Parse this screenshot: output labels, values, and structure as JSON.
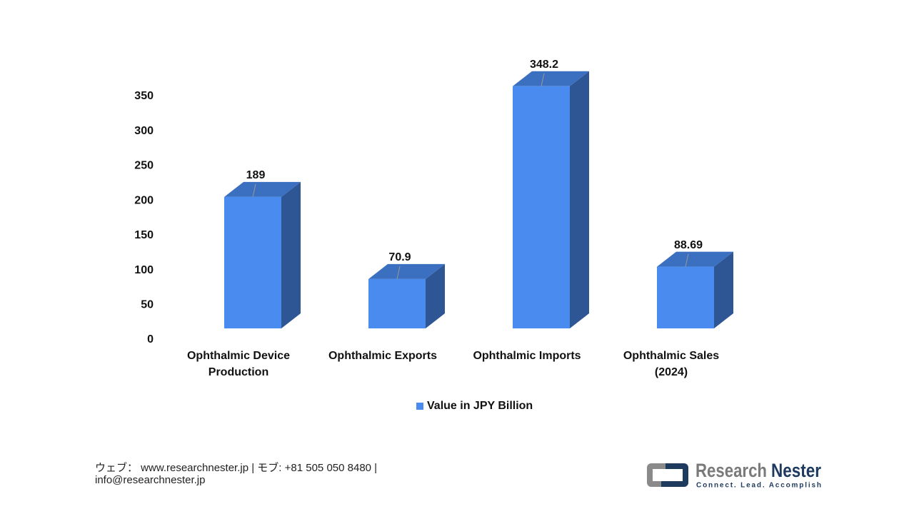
{
  "chart_data": {
    "type": "bar3d",
    "categories": [
      "Ophthalmic Device Production",
      "Ophthalmic Exports",
      "Ophthalmic Imports",
      "Ophthalmic Sales (2024)"
    ],
    "series": [
      {
        "name": "Value in JPY Billion",
        "color": "#4a8bef",
        "values": [
          189,
          70.9,
          348.2,
          88.69
        ]
      }
    ],
    "ylim": [
      0,
      350
    ],
    "yticks": [
      0,
      50,
      100,
      150,
      200,
      250,
      300,
      350
    ],
    "grid": false,
    "legend": "bottom"
  },
  "footer": {
    "contact": [
      "ウェブ：  www.researchnester.jp  | モブ: +81 505 050 8480 |",
      "info@researchnester.jp"
    ]
  },
  "logo": {
    "word1": "Research",
    "word2": "Nester",
    "tagline": "Connect. Lead. Accomplish"
  }
}
